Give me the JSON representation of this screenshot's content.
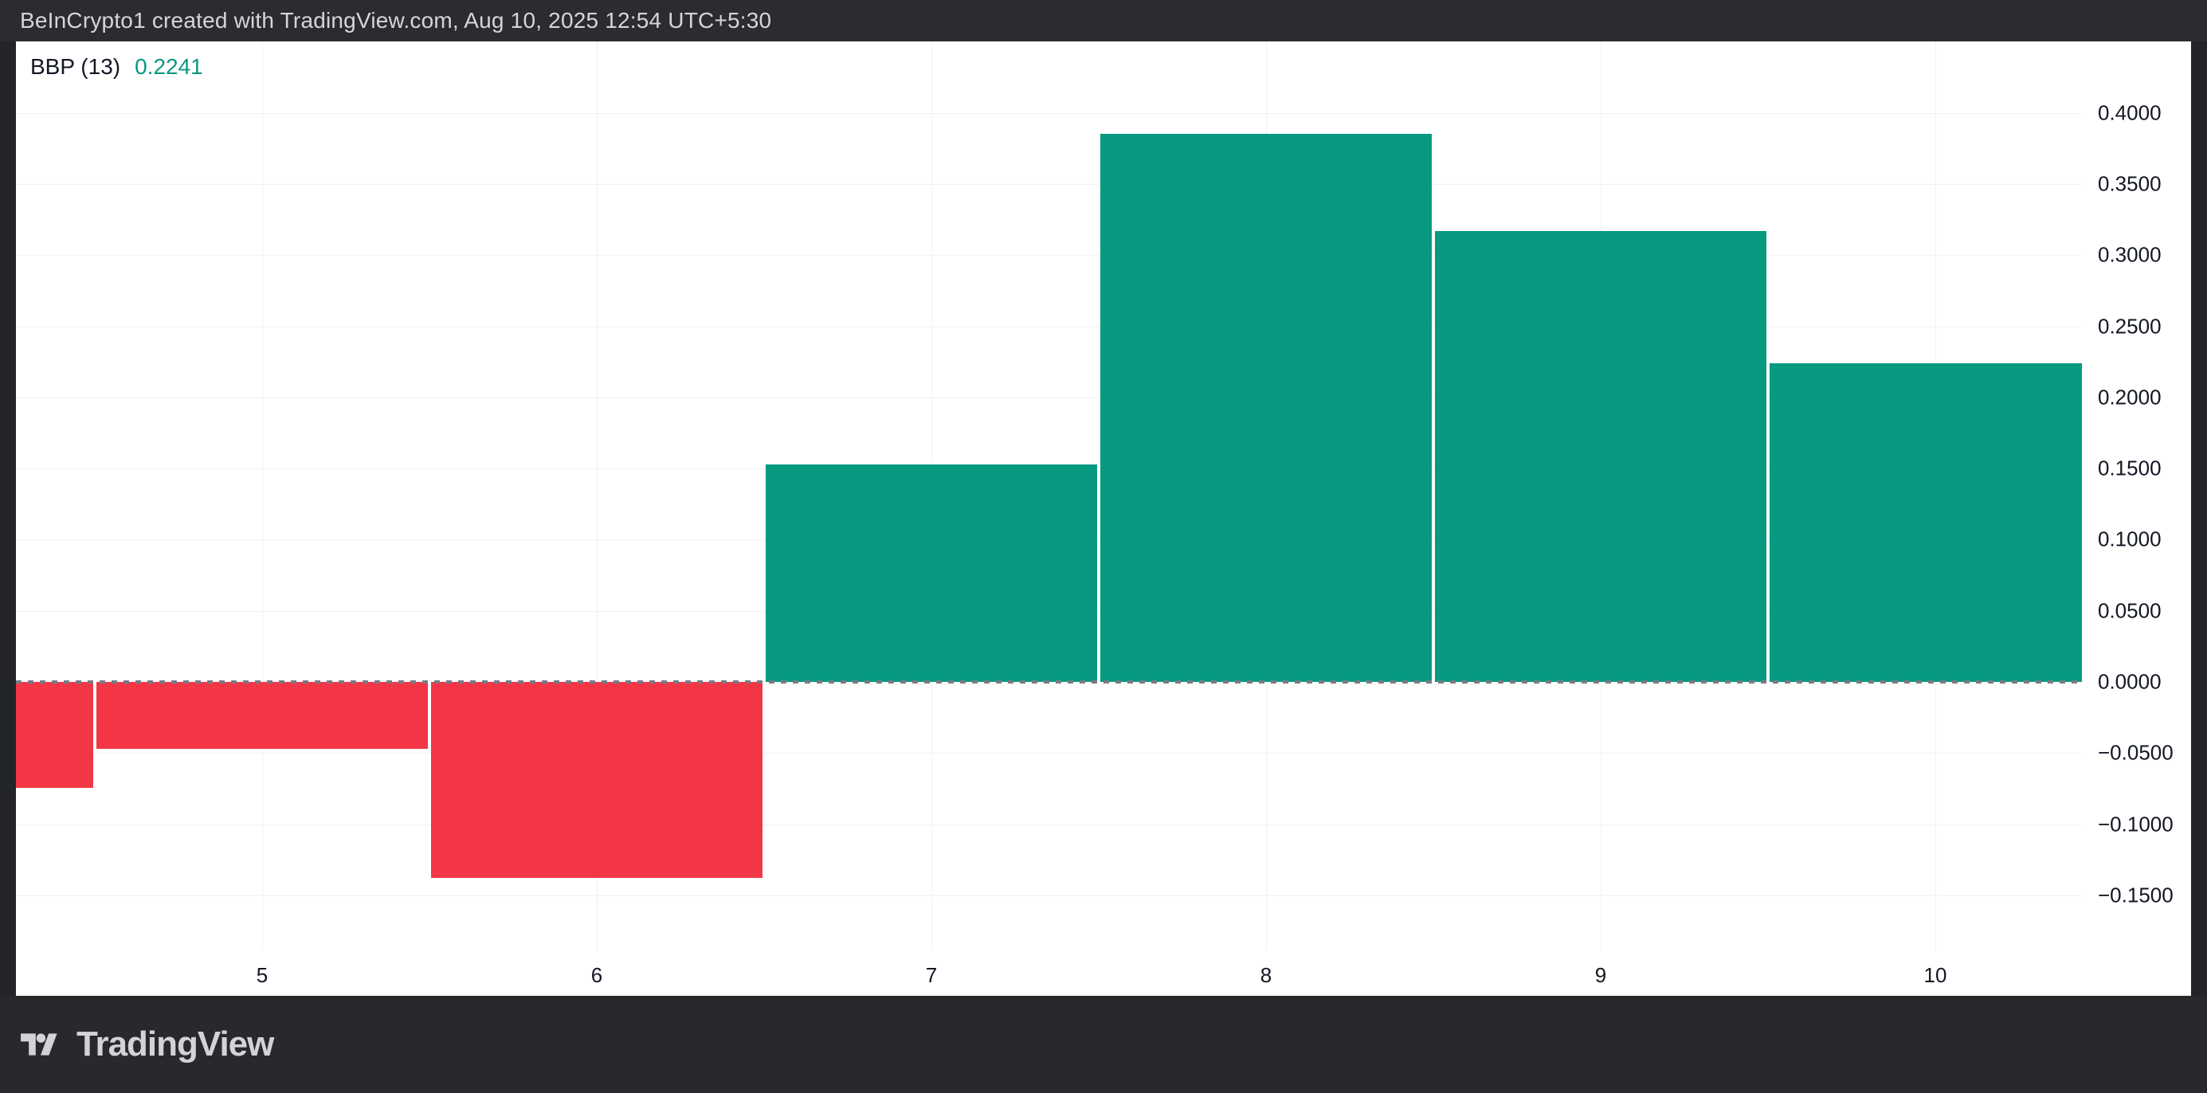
{
  "header": {
    "title": "BeInCrypto1 created with TradingView.com, Aug 10, 2025 12:54 UTC+5:30"
  },
  "legend": {
    "label": "BBP (13)",
    "value": "0.2241"
  },
  "footer": {
    "brand": "TradingView"
  },
  "colors": {
    "positive": "#089981",
    "negative": "#F23645",
    "value_text": "#089981",
    "axis_text": "#131722",
    "grid": "#F0F1F4",
    "zero_line": "#787B86",
    "chart_bg": "#FFFFFF",
    "frame_bg": "#2B2C2F"
  },
  "chart_data": {
    "type": "bar",
    "title": "BBP (13)",
    "subtitle": "Bull Bear Power histogram",
    "points": [
      {
        "x": 4,
        "y": -0.0746
      },
      {
        "x": 5,
        "y": -0.047
      },
      {
        "x": 6,
        "y": -0.138
      },
      {
        "x": 7,
        "y": 0.153
      },
      {
        "x": 8,
        "y": 0.385
      },
      {
        "x": 9,
        "y": 0.317
      },
      {
        "x": 10,
        "y": 0.2241
      }
    ],
    "up_color": "#089981",
    "down_color": "#F23645",
    "x_ticks": [
      {
        "v": 5,
        "label": "5"
      },
      {
        "v": 6,
        "label": "6"
      },
      {
        "v": 7,
        "label": "7"
      },
      {
        "v": 8,
        "label": "8"
      },
      {
        "v": 9,
        "label": "9"
      },
      {
        "v": 10,
        "label": "10"
      }
    ],
    "y_ticks": [
      {
        "v": 0.4,
        "label": "0.4000"
      },
      {
        "v": 0.35,
        "label": "0.3500"
      },
      {
        "v": 0.3,
        "label": "0.3000"
      },
      {
        "v": 0.25,
        "label": "0.2500"
      },
      {
        "v": 0.2,
        "label": "0.2000"
      },
      {
        "v": 0.15,
        "label": "0.1500"
      },
      {
        "v": 0.1,
        "label": "0.1000"
      },
      {
        "v": 0.05,
        "label": "0.0500"
      },
      {
        "v": 0.0,
        "label": "0.0000"
      },
      {
        "v": -0.05,
        "label": "−0.0500"
      },
      {
        "v": -0.1,
        "label": "−0.1000"
      },
      {
        "v": -0.15,
        "label": "−0.1500"
      }
    ],
    "ylim": [
      -0.189,
      0.45
    ],
    "xlim": [
      4.45,
      10.45
    ],
    "grid": true,
    "zero_line": "dashed",
    "legend_position": "top-left",
    "y_axis_position": "right",
    "x_axis_position": "bottom"
  }
}
